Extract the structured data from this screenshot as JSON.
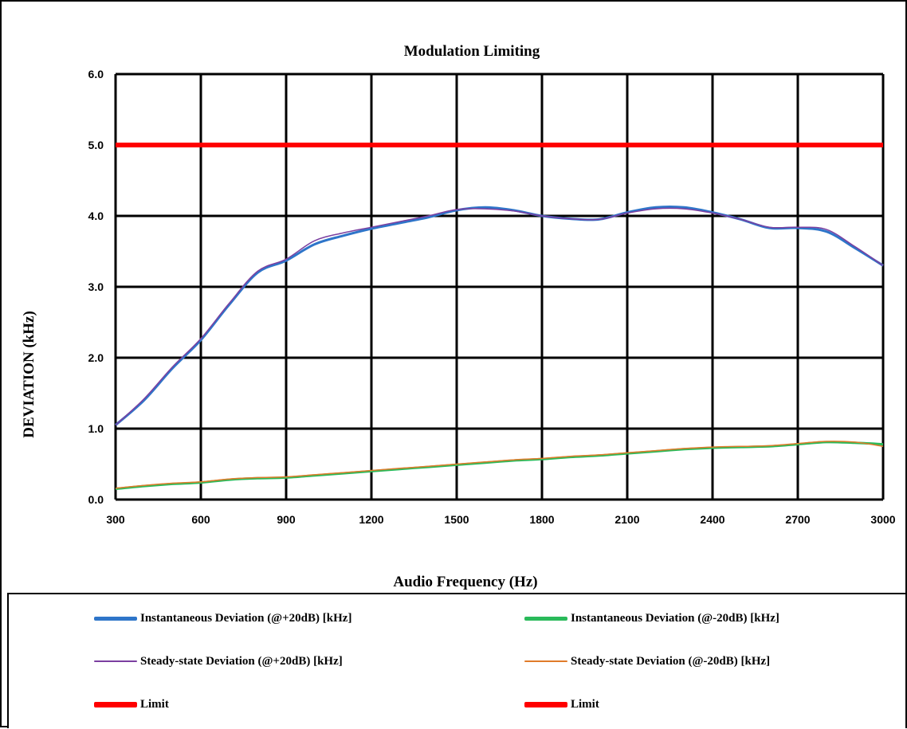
{
  "chart_data": {
    "type": "line",
    "title": "Modulation Limiting",
    "xlabel": "Audio Frequency (Hz)",
    "ylabel": "DEVIATION (kHz)",
    "xlim": [
      300,
      3000
    ],
    "ylim": [
      0,
      6
    ],
    "x_ticks": [
      "300",
      "600",
      "900",
      "1200",
      "1500",
      "1800",
      "2100",
      "2400",
      "2700",
      "3000"
    ],
    "y_ticks": [
      "0.0",
      "1.0",
      "2.0",
      "3.0",
      "4.0",
      "5.0",
      "6.0"
    ],
    "grid": true,
    "legend_position": "bottom",
    "x": [
      300,
      400,
      500,
      600,
      700,
      800,
      900,
      1000,
      1100,
      1200,
      1300,
      1400,
      1500,
      1600,
      1700,
      1800,
      1900,
      2000,
      2100,
      2200,
      2300,
      2400,
      2500,
      2600,
      2700,
      2800,
      2900,
      3000
    ],
    "series": [
      {
        "name": "Instantaneous Deviation (@+20dB) [kHz]",
        "color": "#2e75c9",
        "width": 3,
        "values": [
          1.05,
          1.4,
          1.85,
          2.25,
          2.75,
          3.2,
          3.37,
          3.6,
          3.72,
          3.82,
          3.9,
          3.98,
          4.08,
          4.12,
          4.08,
          4.0,
          3.96,
          3.95,
          4.05,
          4.12,
          4.12,
          4.05,
          3.95,
          3.83,
          3.83,
          3.78,
          3.55,
          3.3
        ]
      },
      {
        "name": "Instantaneous Deviation (@-20dB) [kHz]",
        "color": "#2aba5a",
        "width": 3,
        "values": [
          0.15,
          0.19,
          0.22,
          0.24,
          0.28,
          0.3,
          0.31,
          0.34,
          0.37,
          0.4,
          0.43,
          0.46,
          0.49,
          0.52,
          0.55,
          0.57,
          0.6,
          0.62,
          0.65,
          0.68,
          0.71,
          0.73,
          0.74,
          0.75,
          0.78,
          0.81,
          0.8,
          0.78
        ]
      },
      {
        "name": "Steady-state Deviation (@+20dB) [kHz]",
        "color": "#7b3fa0",
        "width": 1.5,
        "values": [
          1.05,
          1.42,
          1.87,
          2.27,
          2.77,
          3.22,
          3.39,
          3.65,
          3.76,
          3.84,
          3.92,
          4.0,
          4.09,
          4.1,
          4.07,
          4.0,
          3.96,
          3.95,
          4.04,
          4.1,
          4.1,
          4.04,
          3.95,
          3.84,
          3.84,
          3.81,
          3.57,
          3.3
        ]
      },
      {
        "name": "Steady-state Deviation (@-20dB) [kHz]",
        "color": "#e07b2a",
        "width": 1.5,
        "values": [
          0.16,
          0.2,
          0.23,
          0.25,
          0.29,
          0.31,
          0.32,
          0.35,
          0.38,
          0.41,
          0.44,
          0.47,
          0.5,
          0.53,
          0.56,
          0.58,
          0.61,
          0.63,
          0.66,
          0.69,
          0.72,
          0.74,
          0.75,
          0.76,
          0.79,
          0.82,
          0.81,
          0.75
        ]
      },
      {
        "name": "Limit",
        "color": "#ff0000",
        "width": 6,
        "values": [
          5,
          5,
          5,
          5,
          5,
          5,
          5,
          5,
          5,
          5,
          5,
          5,
          5,
          5,
          5,
          5,
          5,
          5,
          5,
          5,
          5,
          5,
          5,
          5,
          5,
          5,
          5,
          5
        ]
      },
      {
        "name": "Limit",
        "color": "#ff0000",
        "width": 6,
        "values": [
          5,
          5,
          5,
          5,
          5,
          5,
          5,
          5,
          5,
          5,
          5,
          5,
          5,
          5,
          5,
          5,
          5,
          5,
          5,
          5,
          5,
          5,
          5,
          5,
          5,
          5,
          5,
          5
        ]
      }
    ]
  },
  "legend": {
    "items": [
      {
        "label": "Instantaneous Deviation (@+20dB) [kHz]",
        "color": "#2e75c9",
        "swatch": "thick"
      },
      {
        "label": "Instantaneous Deviation (@-20dB) [kHz]",
        "color": "#2aba5a",
        "swatch": "thick"
      },
      {
        "label": "Steady-state Deviation (@+20dB) [kHz]",
        "color": "#7b3fa0",
        "swatch": "thin"
      },
      {
        "label": "Steady-state Deviation (@-20dB) [kHz]",
        "color": "#e07b2a",
        "swatch": "thin"
      },
      {
        "label": "Limit",
        "color": "#ff0000",
        "swatch": "heavy"
      },
      {
        "label": "Limit",
        "color": "#ff0000",
        "swatch": "heavy"
      }
    ]
  }
}
